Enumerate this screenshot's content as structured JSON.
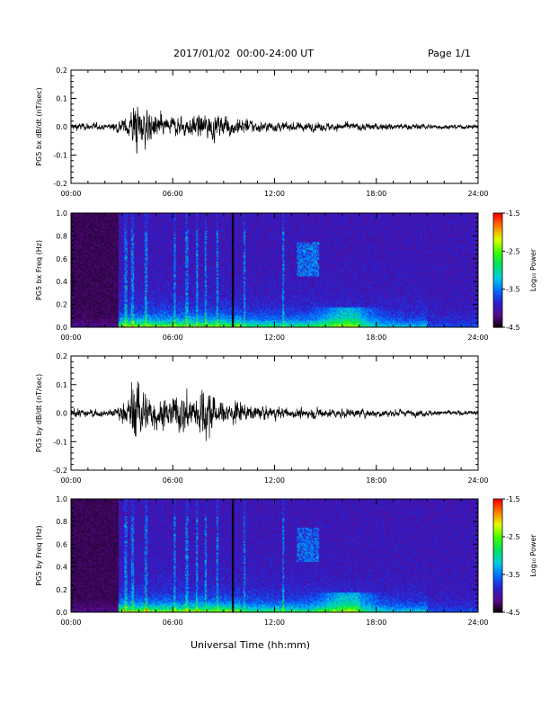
{
  "header": {
    "title": "2017/01/02  00:00-24:00 UT",
    "page": "Page 1/1"
  },
  "xaxis_title": "Universal Time (hh:mm)",
  "chart_data": [
    {
      "type": "line",
      "ylabel": "PG5 bx dB/dt (nT/sec)",
      "xlim": [
        "00:00",
        "24:00"
      ],
      "ylim": [
        -0.2,
        0.2
      ],
      "x_ticks": [
        "00:00",
        "06:00",
        "12:00",
        "18:00",
        "24:00"
      ],
      "y_ticks": [
        "-0.2",
        "-0.1",
        "0.0",
        "0.1",
        "0.2"
      ],
      "line_color": "#000000",
      "envelope": {
        "x_hours": [
          0,
          1,
          2,
          2.6,
          3.3,
          3.6,
          3.9,
          4.2,
          4.6,
          5,
          5.6,
          6.2,
          6.8,
          7.3,
          8,
          8.5,
          9,
          9.5,
          10,
          11,
          12,
          13,
          14,
          15,
          16,
          17,
          18,
          19,
          20,
          21,
          22,
          23,
          24
        ],
        "amplitude": [
          0.018,
          0.016,
          0.012,
          0.02,
          0.04,
          0.075,
          0.12,
          0.08,
          0.06,
          0.05,
          0.045,
          0.045,
          0.04,
          0.05,
          0.06,
          0.045,
          0.045,
          0.045,
          0.035,
          0.025,
          0.02,
          0.02,
          0.02,
          0.018,
          0.018,
          0.017,
          0.015,
          0.015,
          0.013,
          0.012,
          0.01,
          0.01,
          0.01
        ]
      }
    },
    {
      "type": "heatmap",
      "ylabel": "PG5 bx Freq (Hz)",
      "xlim": [
        "00:00",
        "24:00"
      ],
      "ylim": [
        0.0,
        1.0
      ],
      "x_ticks": [
        "00:00",
        "06:00",
        "12:00",
        "18:00",
        "24:00"
      ],
      "y_ticks": [
        "0.0",
        "0.2",
        "0.4",
        "0.6",
        "0.8",
        "1.0"
      ],
      "colorbar": {
        "label": "Log₁₀ Power",
        "range": [
          -4.5,
          -1.5
        ],
        "ticks": [
          "-1.5",
          "-2.5",
          "-3.5",
          "-4.5"
        ],
        "colors": [
          "#000000",
          "#5a0a8a",
          "#2a1fd0",
          "#0070ff",
          "#00d0e0",
          "#00e060",
          "#40ff00",
          "#e0ff00",
          "#ff8000",
          "#ff0000"
        ]
      },
      "features": {
        "quiet_hours": [
          0,
          2.8
        ],
        "gap_hour": 9.5,
        "activity_hours": [
          2.8,
          21
        ],
        "pulsation_band_hz": [
          0.45,
          0.75
        ],
        "pulsation_hours": [
          13.3,
          14.6
        ]
      }
    },
    {
      "type": "line",
      "ylabel": "PG5 by dB/dt (nT/sec)",
      "xlim": [
        "00:00",
        "24:00"
      ],
      "ylim": [
        -0.2,
        0.2
      ],
      "x_ticks": [
        "00:00",
        "06:00",
        "12:00",
        "18:00",
        "24:00"
      ],
      "y_ticks": [
        "-0.2",
        "-0.1",
        "0.0",
        "0.1",
        "0.2"
      ],
      "line_color": "#000000",
      "envelope": {
        "x_hours": [
          0,
          1,
          2,
          2.6,
          3.3,
          3.6,
          3.9,
          4.2,
          4.6,
          5,
          5.6,
          6.2,
          6.8,
          7.3,
          8,
          8.5,
          9,
          9.5,
          10,
          11,
          12,
          13,
          14,
          15,
          16,
          17,
          18,
          19,
          20,
          21,
          22,
          23,
          24
        ],
        "amplitude": [
          0.02,
          0.018,
          0.012,
          0.02,
          0.05,
          0.13,
          0.14,
          0.1,
          0.09,
          0.07,
          0.06,
          0.07,
          0.09,
          0.07,
          0.12,
          0.06,
          0.05,
          0.05,
          0.04,
          0.03,
          0.025,
          0.022,
          0.022,
          0.02,
          0.02,
          0.018,
          0.016,
          0.016,
          0.014,
          0.012,
          0.011,
          0.01,
          0.01
        ]
      }
    },
    {
      "type": "heatmap",
      "ylabel": "PG5 by Freq (Hz)",
      "xlim": [
        "00:00",
        "24:00"
      ],
      "ylim": [
        0.0,
        1.0
      ],
      "x_ticks": [
        "00:00",
        "06:00",
        "12:00",
        "18:00",
        "24:00"
      ],
      "y_ticks": [
        "0.0",
        "0.2",
        "0.4",
        "0.6",
        "0.8",
        "1.0"
      ],
      "colorbar": {
        "label": "Log₁₀ Power",
        "range": [
          -4.5,
          -1.5
        ],
        "ticks": [
          "-1.5",
          "-2.5",
          "-3.5",
          "-4.5"
        ],
        "colors": [
          "#000000",
          "#5a0a8a",
          "#2a1fd0",
          "#0070ff",
          "#00d0e0",
          "#00e060",
          "#40ff00",
          "#e0ff00",
          "#ff8000",
          "#ff0000"
        ]
      },
      "features": {
        "quiet_hours": [
          0,
          2.8
        ],
        "gap_hour": 9.5,
        "activity_hours": [
          2.8,
          21
        ],
        "pulsation_band_hz": [
          0.45,
          0.75
        ],
        "pulsation_hours": [
          13.3,
          14.6
        ]
      }
    }
  ]
}
